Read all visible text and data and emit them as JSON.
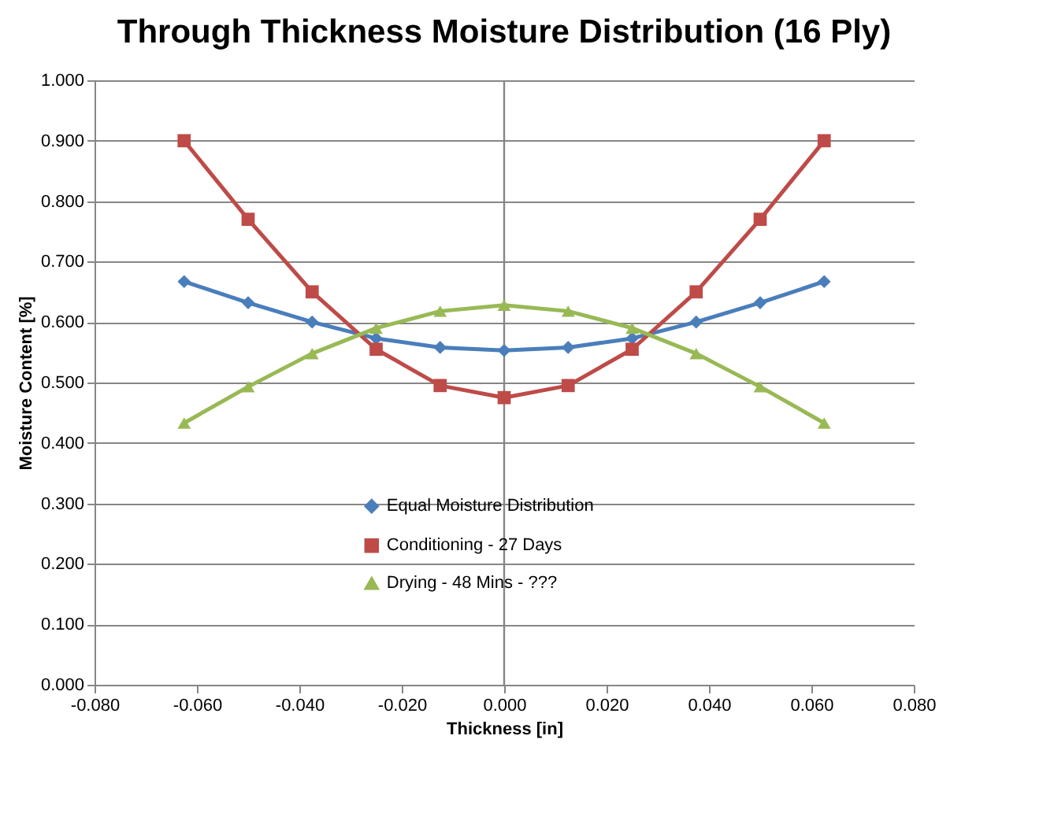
{
  "chart_data": {
    "type": "line",
    "title": "Through Thickness Moisture Distribution (16 Ply)",
    "xlabel": "Thickness [in]",
    "ylabel": "Moisture Content [%]",
    "x": [
      -0.0625,
      -0.05,
      -0.0375,
      -0.025,
      -0.0125,
      0,
      0.0125,
      0.025,
      0.0375,
      0.05,
      0.0625
    ],
    "series": [
      {
        "name": "Equal Moisture Distribution",
        "color": "#4a7ebb",
        "marker": "diamond",
        "values": [
          0.667,
          0.632,
          0.6,
          0.573,
          0.558,
          0.553,
          0.558,
          0.573,
          0.6,
          0.632,
          0.667
        ]
      },
      {
        "name": "Conditioning - 27 Days",
        "color": "#be4b48",
        "marker": "square",
        "values": [
          0.9,
          0.77,
          0.65,
          0.555,
          0.495,
          0.475,
          0.495,
          0.555,
          0.65,
          0.77,
          0.9
        ]
      },
      {
        "name": "Drying - 48 Mins - ???",
        "color": "#98b954",
        "marker": "triangle",
        "values": [
          0.433,
          0.493,
          0.548,
          0.59,
          0.618,
          0.628,
          0.618,
          0.59,
          0.548,
          0.493,
          0.433
        ]
      }
    ],
    "xlim": [
      -0.08,
      0.08
    ],
    "xticks": [
      {
        "value": -0.08,
        "label": "-0.080"
      },
      {
        "value": -0.06,
        "label": "-0.060"
      },
      {
        "value": -0.04,
        "label": "-0.040"
      },
      {
        "value": -0.02,
        "label": "-0.020"
      },
      {
        "value": 0,
        "label": "0.000"
      },
      {
        "value": 0.02,
        "label": "0.020"
      },
      {
        "value": 0.04,
        "label": "0.040"
      },
      {
        "value": 0.06,
        "label": "0.060"
      },
      {
        "value": 0.08,
        "label": "0.080"
      }
    ],
    "ylim": [
      0,
      1
    ],
    "yticks": [
      {
        "value": 0,
        "label": "0.000"
      },
      {
        "value": 0.1,
        "label": "0.100"
      },
      {
        "value": 0.2,
        "label": "0.200"
      },
      {
        "value": 0.3,
        "label": "0.300"
      },
      {
        "value": 0.4,
        "label": "0.400"
      },
      {
        "value": 0.5,
        "label": "0.500"
      },
      {
        "value": 0.6,
        "label": "0.600"
      },
      {
        "value": 0.7,
        "label": "0.700"
      },
      {
        "value": 0.8,
        "label": "0.800"
      },
      {
        "value": 0.9,
        "label": "0.900"
      },
      {
        "value": 1,
        "label": "1.000"
      }
    ],
    "grid": "y",
    "legend": "bottom",
    "line_style": "solid",
    "ref_lines": [
      {
        "axis": "x",
        "value": 0,
        "color": "#868686"
      }
    ]
  }
}
